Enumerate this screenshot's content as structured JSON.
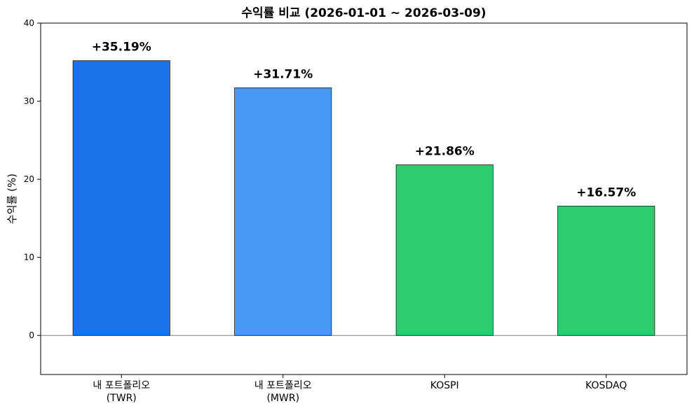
{
  "chart_data": {
    "type": "bar",
    "title": "수익률 비교 (2026-01-01 ~ 2026-03-09)",
    "xlabel": "",
    "ylabel": "수익률 (%)",
    "ylim": [
      -5,
      40
    ],
    "yticks": [
      0,
      10,
      20,
      30,
      40
    ],
    "grid": false,
    "categories": [
      [
        "내 포트폴리오",
        "(TWR)"
      ],
      [
        "내 포트폴리오",
        "(MWR)"
      ],
      [
        "KOSPI"
      ],
      [
        "KOSDAQ"
      ]
    ],
    "values": [
      35.19,
      31.71,
      21.86,
      16.57
    ],
    "data_labels": [
      "+35.19%",
      "+31.71%",
      "+21.86%",
      "+16.57%"
    ],
    "colors": [
      "#1a73e8",
      "#4a98f5",
      "#2ecc71",
      "#2ecc71"
    ],
    "zero_line_color": "#808080"
  }
}
